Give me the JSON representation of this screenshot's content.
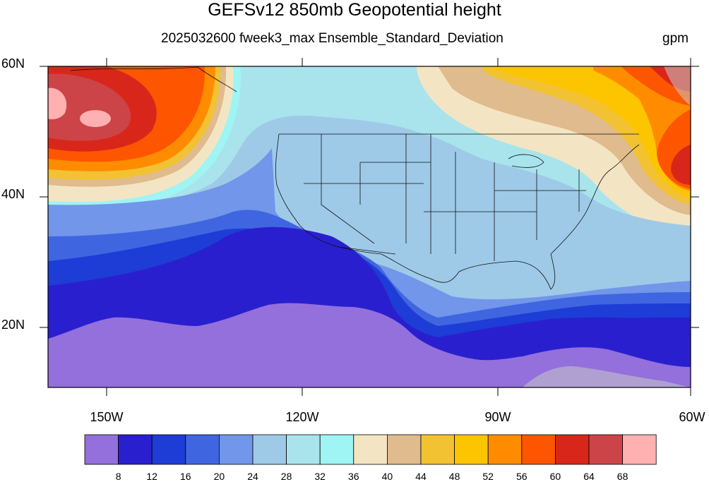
{
  "title": "GEFSv12 850mb Geopotential height",
  "subtitle": "2025032600 fweek3_max Ensemble_Standard_Deviation",
  "units": "gpm",
  "axes": {
    "lat_labels": [
      "60N",
      "40N",
      "20N"
    ],
    "lon_labels": [
      "150W",
      "120W",
      "90W",
      "60W"
    ]
  },
  "colorbar": {
    "labels": [
      "8",
      "12",
      "16",
      "20",
      "24",
      "28",
      "32",
      "36",
      "40",
      "44",
      "48",
      "52",
      "56",
      "60",
      "64",
      "68"
    ],
    "colors": [
      "#9370db",
      "#2a1fcf",
      "#1e3cd6",
      "#3f66e0",
      "#7196ea",
      "#9ecae8",
      "#a9e4ec",
      "#9ff4f4",
      "#f3e5c3",
      "#dfbb8d",
      "#f2c232",
      "#fdc500",
      "#ff8c00",
      "#fe5500",
      "#d8271a",
      "#cc4448",
      "#ffb0b0"
    ]
  },
  "map": {
    "projection": "cylindrical equidistant",
    "lat_range": [
      10,
      60
    ],
    "lon_range": [
      -159,
      -60
    ],
    "field": "850mb geopotential height ensemble standard deviation"
  }
}
